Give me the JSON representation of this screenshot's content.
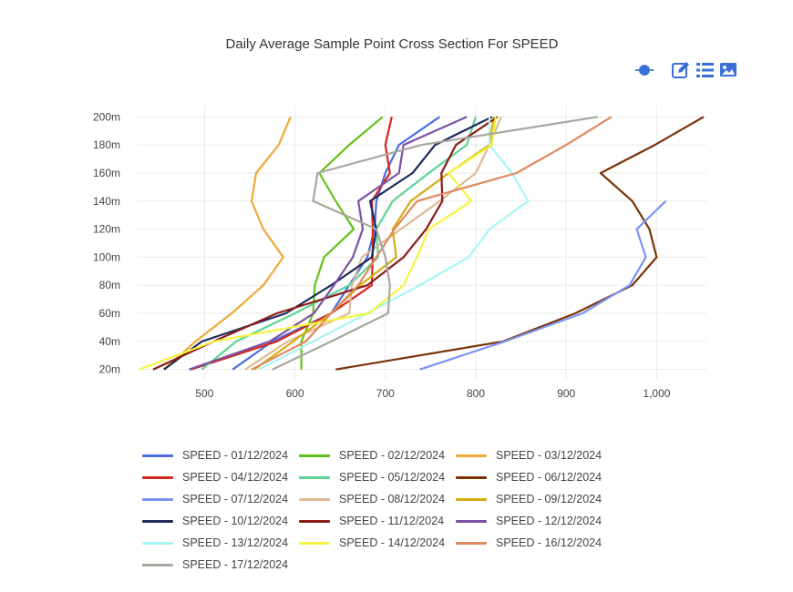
{
  "title": "Daily Average Sample Point Cross Section For SPEED",
  "toolbar": {
    "icons": [
      "timeline-dot-icon",
      "edit-icon",
      "list-icon",
      "image-icon"
    ],
    "color": "#3b6fd8"
  },
  "chart_data": {
    "type": "line",
    "title": "Daily Average Sample Point Cross Section For SPEED",
    "xlabel": "",
    "ylabel": "",
    "xlim": [
      425,
      1055
    ],
    "ylim": [
      12,
      208
    ],
    "x_ticks": [
      500,
      600,
      700,
      800,
      900,
      1000
    ],
    "x_tick_labels": [
      "500",
      "600",
      "700",
      "800",
      "900",
      "1,000"
    ],
    "y_ticks": [
      20,
      40,
      60,
      80,
      100,
      120,
      140,
      160,
      180,
      200
    ],
    "y_tick_labels": [
      "20m",
      "40m",
      "60m",
      "80m",
      "100m",
      "120m",
      "140m",
      "160m",
      "180m",
      "200m"
    ],
    "grid": true,
    "legend_position": "bottom",
    "series": [
      {
        "name": "SPEED - 01/12/2024",
        "color": "#4a6ee0",
        "x": [
          531,
          575,
          640,
          660,
          680,
          688,
          690,
          700,
          715,
          760
        ],
        "y": [
          20,
          40,
          60,
          80,
          100,
          120,
          140,
          160,
          180,
          200
        ]
      },
      {
        "name": "SPEED - 02/12/2024",
        "color": "#63c21a",
        "x": [
          607,
          607,
          620,
          622,
          632,
          665,
          645,
          627,
          660,
          697
        ],
        "y": [
          20,
          40,
          60,
          80,
          100,
          120,
          140,
          160,
          180,
          200
        ]
      },
      {
        "name": "SPEED - 03/12/2024",
        "color": "#f0a836",
        "x": [
          455,
          490,
          530,
          565,
          587,
          565,
          552,
          557,
          582,
          595
        ],
        "y": [
          20,
          40,
          60,
          80,
          100,
          120,
          140,
          160,
          180,
          200
        ]
      },
      {
        "name": "SPEED - 04/12/2024",
        "color": "#d6251e",
        "x": [
          485,
          580,
          640,
          685,
          686,
          686,
          685,
          705,
          700,
          707
        ],
        "y": [
          20,
          40,
          60,
          80,
          100,
          120,
          140,
          160,
          180,
          200
        ]
      },
      {
        "name": "SPEED - 05/12/2024",
        "color": "#5dd496",
        "x": [
          497,
          535,
          600,
          660,
          692,
          690,
          708,
          748,
          790,
          800
        ],
        "y": [
          20,
          40,
          60,
          80,
          100,
          120,
          140,
          160,
          180,
          200
        ]
      },
      {
        "name": "SPEED - 06/12/2024",
        "color": "#7b3308",
        "x": [
          645,
          830,
          910,
          973,
          1000,
          992,
          973,
          938,
          998,
          1052
        ],
        "y": [
          20,
          40,
          60,
          80,
          100,
          120,
          140,
          160,
          180,
          200
        ]
      },
      {
        "name": "SPEED - 07/12/2024",
        "color": "#7b93f5",
        "x": [
          738,
          832,
          918,
          970,
          988,
          978,
          1010,
          null,
          null,
          null
        ],
        "y": [
          20,
          40,
          60,
          80,
          100,
          120,
          140,
          160,
          180,
          200
        ]
      },
      {
        "name": "SPEED - 08/12/2024",
        "color": "#e0b996",
        "x": [
          545,
          592,
          660,
          663,
          674,
          717,
          760,
          800,
          815,
          828
        ],
        "y": [
          20,
          40,
          60,
          80,
          100,
          120,
          140,
          160,
          180,
          200
        ]
      },
      {
        "name": "SPEED - 09/12/2024",
        "color": "#d6ad10",
        "x": [
          555,
          598,
          640,
          672,
          712,
          708,
          728,
          770,
          815,
          820
        ],
        "y": [
          20,
          40,
          60,
          80,
          100,
          120,
          140,
          160,
          180,
          200
        ]
      },
      {
        "name": "SPEED - 10/12/2024",
        "color": "#1f2c5c",
        "x": [
          455,
          497,
          590,
          640,
          685,
          690,
          683,
          730,
          755,
          818
        ],
        "y": [
          20,
          40,
          60,
          80,
          100,
          120,
          140,
          160,
          180,
          200
        ]
      },
      {
        "name": "SPEED - 11/12/2024",
        "color": "#8b1c16",
        "x": [
          443,
          510,
          580,
          680,
          720,
          745,
          763,
          762,
          778,
          824
        ],
        "y": [
          20,
          40,
          60,
          80,
          100,
          120,
          140,
          160,
          180,
          200
        ]
      },
      {
        "name": "SPEED - 12/12/2024",
        "color": "#7b52a3",
        "x": [
          483,
          572,
          621,
          643,
          664,
          675,
          670,
          715,
          720,
          790
        ],
        "y": [
          20,
          40,
          60,
          80,
          100,
          120,
          140,
          160,
          180,
          200
        ]
      },
      {
        "name": "SPEED - 13/12/2024",
        "color": "#a8f5f5",
        "x": [
          560,
          620,
          680,
          738,
          792,
          815,
          858,
          840,
          815,
          815
        ],
        "y": [
          20,
          40,
          60,
          80,
          100,
          120,
          140,
          160,
          180,
          200
        ]
      },
      {
        "name": "SPEED - 14/12/2024",
        "color": "#f5f542",
        "x": [
          428,
          510,
          682,
          720,
          735,
          748,
          795,
          770,
          818,
          822
        ],
        "y": [
          20,
          40,
          60,
          80,
          100,
          120,
          140,
          160,
          180,
          200
        ]
      },
      {
        "name": "SPEED - 16/12/2024",
        "color": "#e0885e",
        "x": [
          552,
          612,
          640,
          670,
          690,
          710,
          735,
          845,
          900,
          950
        ],
        "y": [
          20,
          40,
          60,
          80,
          100,
          120,
          140,
          160,
          180,
          200
        ]
      },
      {
        "name": "SPEED - 17/12/2024",
        "color": "#a8a8a0",
        "x": [
          575,
          640,
          703,
          705,
          700,
          690,
          620,
          625,
          740,
          935
        ],
        "y": [
          20,
          40,
          60,
          80,
          100,
          120,
          140,
          160,
          180,
          200
        ]
      }
    ]
  }
}
